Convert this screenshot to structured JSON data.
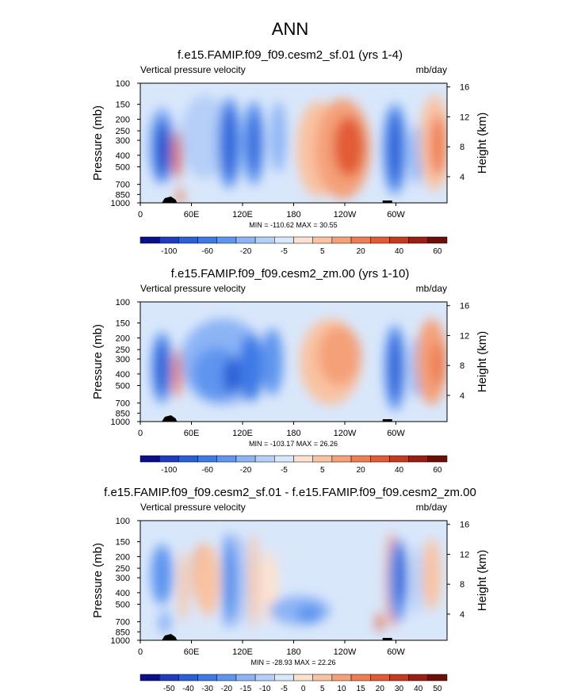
{
  "main_title": "ANN",
  "chart_data": [
    {
      "type": "heatmap",
      "title": "f.e15.FAMIP.f09_f09.cesm2_sf.01 (yrs 1-4)",
      "left_label": "Vertical pressure velocity",
      "units": "mb/day",
      "ylabel": "Pressure (mb)",
      "ylabel_right": "Height (km)",
      "y_ticks": [
        "100",
        "150",
        "200",
        "250",
        "300",
        "400",
        "500",
        "700",
        "850",
        "1000"
      ],
      "y_tick_values": [
        100,
        150,
        200,
        250,
        300,
        400,
        500,
        700,
        850,
        1000
      ],
      "y_right_ticks": [
        "16",
        "12",
        "8",
        "4"
      ],
      "y_right_values": [
        16,
        12,
        8,
        4
      ],
      "x_ticks": [
        "0",
        "60E",
        "120E",
        "180",
        "120W",
        "60W"
      ],
      "x_tick_values": [
        0,
        60,
        120,
        180,
        240,
        300
      ],
      "xlim": [
        0,
        360
      ],
      "ylim": [
        100,
        1000
      ],
      "stats": "MIN = -110.62  MAX =  30.55",
      "colorbar_labels": [
        "-100",
        "-60",
        "-20",
        "-5",
        "5",
        "20",
        "40",
        "60"
      ],
      "colorbar_colors": [
        "#0a0f8c",
        "#1f3bbf",
        "#2b5fd6",
        "#3d7ae6",
        "#5f95ef",
        "#8cb4f5",
        "#b5cff8",
        "#d9e7fb",
        "#fde1d0",
        "#f9c2a2",
        "#f4a078",
        "#ee7e52",
        "#e25b35",
        "#c43a1f",
        "#9a1e12",
        "#6d0e08"
      ],
      "levels": [
        -100,
        -80,
        -60,
        -40,
        -20,
        -10,
        -5,
        0,
        5,
        10,
        20,
        30,
        40,
        50,
        60
      ],
      "min": -110.62,
      "max": 30.55
    },
    {
      "type": "heatmap",
      "title": "f.e15.FAMIP.f09_f09.cesm2_zm.00 (yrs 1-10)",
      "left_label": "Vertical pressure velocity",
      "units": "mb/day",
      "ylabel": "Pressure (mb)",
      "ylabel_right": "Height (km)",
      "y_ticks": [
        "100",
        "150",
        "200",
        "250",
        "300",
        "400",
        "500",
        "700",
        "850",
        "1000"
      ],
      "y_tick_values": [
        100,
        150,
        200,
        250,
        300,
        400,
        500,
        700,
        850,
        1000
      ],
      "y_right_ticks": [
        "16",
        "12",
        "8",
        "4"
      ],
      "y_right_values": [
        16,
        12,
        8,
        4
      ],
      "x_ticks": [
        "0",
        "60E",
        "120E",
        "180",
        "120W",
        "60W"
      ],
      "x_tick_values": [
        0,
        60,
        120,
        180,
        240,
        300
      ],
      "xlim": [
        0,
        360
      ],
      "ylim": [
        100,
        1000
      ],
      "stats": "MIN = -103.17  MAX =  26.26",
      "colorbar_labels": [
        "-100",
        "-60",
        "-20",
        "-5",
        "5",
        "20",
        "40",
        "60"
      ],
      "colorbar_colors": [
        "#0a0f8c",
        "#1f3bbf",
        "#2b5fd6",
        "#3d7ae6",
        "#5f95ef",
        "#8cb4f5",
        "#b5cff8",
        "#d9e7fb",
        "#fde1d0",
        "#f9c2a2",
        "#f4a078",
        "#ee7e52",
        "#e25b35",
        "#c43a1f",
        "#9a1e12",
        "#6d0e08"
      ],
      "levels": [
        -100,
        -80,
        -60,
        -40,
        -20,
        -10,
        -5,
        0,
        5,
        10,
        20,
        30,
        40,
        50,
        60
      ],
      "min": -103.17,
      "max": 26.26
    },
    {
      "type": "heatmap",
      "title": "f.e15.FAMIP.f09_f09.cesm2_sf.01 - f.e15.FAMIP.f09_f09.cesm2_zm.00",
      "left_label": "Vertical pressure velocity",
      "units": "mb/day",
      "ylabel": "Pressure (mb)",
      "ylabel_right": "Height (km)",
      "y_ticks": [
        "100",
        "150",
        "200",
        "250",
        "300",
        "400",
        "500",
        "700",
        "850",
        "1000"
      ],
      "y_tick_values": [
        100,
        150,
        200,
        250,
        300,
        400,
        500,
        700,
        850,
        1000
      ],
      "y_right_ticks": [
        "16",
        "12",
        "8",
        "4"
      ],
      "y_right_values": [
        16,
        12,
        8,
        4
      ],
      "x_ticks": [
        "0",
        "60E",
        "120E",
        "180",
        "120W",
        "60W"
      ],
      "x_tick_values": [
        0,
        60,
        120,
        180,
        240,
        300
      ],
      "xlim": [
        0,
        360
      ],
      "ylim": [
        100,
        1000
      ],
      "stats": "MIN = -28.93  MAX =  22.26",
      "colorbar_labels": [
        "-50",
        "-40",
        "-30",
        "-20",
        "-15",
        "-10",
        "-5",
        "0",
        "5",
        "10",
        "15",
        "20",
        "30",
        "40",
        "50"
      ],
      "colorbar_colors": [
        "#0a0f8c",
        "#1f3bbf",
        "#2b5fd6",
        "#3d7ae6",
        "#5f95ef",
        "#8cb4f5",
        "#b5cff8",
        "#d9e7fb",
        "#fde1d0",
        "#f9c2a2",
        "#f4a078",
        "#ee7e52",
        "#e25b35",
        "#c43a1f",
        "#9a1e12",
        "#6d0e08"
      ],
      "levels": [
        -50,
        -40,
        -30,
        -20,
        -15,
        -10,
        -5,
        0,
        5,
        10,
        15,
        20,
        30,
        40,
        50
      ],
      "min": -28.93,
      "max": 22.26
    }
  ]
}
